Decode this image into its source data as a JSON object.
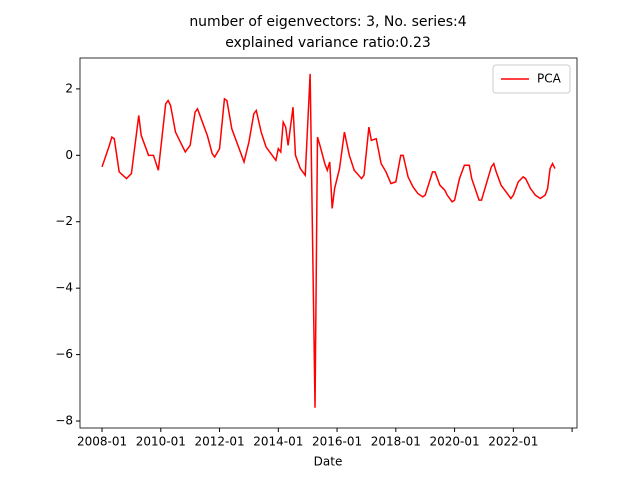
{
  "chart_data": {
    "type": "line",
    "title": "number of eigenvectors: 3, No. series:4",
    "subtitle": "explained variance ratio:0.23",
    "x_label": "Date",
    "legend": "upper right",
    "xlim": [
      "2007-04",
      "2024-03"
    ],
    "ylim": [
      -8.21,
      2.93
    ],
    "xticks": [
      "2008-01",
      "2010-01",
      "2012-01",
      "2014-01",
      "2016-01",
      "2018-01",
      "2020-01",
      "2022-01",
      {
        "value": "2024-01",
        "label": null
      }
    ],
    "yticks": [
      {
        "value": -8,
        "label": "−8"
      },
      {
        "value": -6,
        "label": "−6"
      },
      {
        "value": -4,
        "label": "−4"
      },
      {
        "value": -2,
        "label": "−2"
      },
      0,
      2
    ],
    "x": [
      "2008-01",
      "2008-04",
      "2008-05",
      "2008-06",
      "2008-08",
      "2008-11",
      "2009-01",
      "2009-04",
      "2009-05",
      "2009-08",
      "2009-10",
      "2009-12",
      "2010-03",
      "2010-04",
      "2010-05",
      "2010-07",
      "2010-09",
      "2010-11",
      "2011-01",
      "2011-03",
      "2011-04",
      "2011-08",
      "2011-10",
      "2011-11",
      "2012-01",
      "2012-03",
      "2012-04",
      "2012-06",
      "2012-09",
      "2012-11",
      "2013-01",
      "2013-03",
      "2013-04",
      "2013-06",
      "2013-08",
      "2013-10",
      "2013-12",
      "2014-01",
      "2014-02",
      "2014-03",
      "2014-04",
      "2014-05",
      "2014-07",
      "2014-08",
      "2014-10",
      "2014-12",
      "2015-02",
      "2015-04",
      "2015-05",
      "2015-06",
      "2015-08",
      "2015-09",
      "2015-10",
      "2015-11",
      "2015-12",
      "2016-02",
      "2016-03",
      "2016-04",
      "2016-06",
      "2016-08",
      "2016-11",
      "2016-12",
      "2017-02",
      "2017-03",
      "2017-05",
      "2017-07",
      "2017-09",
      "2017-11",
      "2018-01",
      "2018-03",
      "2018-04",
      "2018-06",
      "2018-08",
      "2018-10",
      "2018-12",
      "2019-01",
      "2019-04",
      "2019-05",
      "2019-07",
      "2019-09",
      "2019-10",
      "2019-12",
      "2020-01",
      "2020-03",
      "2020-05",
      "2020-07",
      "2020-08",
      "2020-11",
      "2020-12",
      "2021-01",
      "2021-04",
      "2021-05",
      "2021-06",
      "2021-08",
      "2021-10",
      "2021-12",
      "2022-01",
      "2022-03",
      "2022-05",
      "2022-06",
      "2022-08",
      "2022-10",
      "2022-12",
      "2023-02",
      "2023-03",
      "2023-04",
      "2023-05",
      "2023-06"
    ],
    "series": [
      {
        "name": "PCA",
        "color": "#ff0000",
        "values": [
          -0.35,
          0.3,
          0.55,
          0.5,
          -0.5,
          -0.7,
          -0.55,
          1.2,
          0.6,
          0,
          0,
          -0.45,
          1.55,
          1.65,
          1.5,
          0.7,
          0.4,
          0.1,
          0.3,
          1.3,
          1.4,
          0.6,
          0.05,
          -0.05,
          0.2,
          1.7,
          1.65,
          0.8,
          0.2,
          -0.2,
          0.4,
          1.25,
          1.35,
          0.7,
          0.25,
          0.05,
          -0.15,
          0.2,
          0.1,
          1.0,
          0.85,
          0.3,
          1.45,
          0.0,
          -0.4,
          -0.6,
          2.45,
          -7.6,
          0.55,
          0.3,
          -0.25,
          -0.45,
          -0.2,
          -1.6,
          -1.0,
          -0.4,
          0.15,
          0.7,
          0.0,
          -0.45,
          -0.7,
          -0.6,
          0.85,
          0.45,
          0.5,
          -0.25,
          -0.5,
          -0.85,
          -0.8,
          0.0,
          0.0,
          -0.65,
          -0.95,
          -1.15,
          -1.25,
          -1.2,
          -0.5,
          -0.5,
          -0.9,
          -1.05,
          -1.2,
          -1.4,
          -1.35,
          -0.7,
          -0.3,
          -0.3,
          -0.7,
          -1.35,
          -1.35,
          -1.1,
          -0.35,
          -0.25,
          -0.5,
          -0.9,
          -1.1,
          -1.3,
          -1.2,
          -0.8,
          -0.65,
          -0.7,
          -1.0,
          -1.2,
          -1.3,
          -1.2,
          -1.0,
          -0.4,
          -0.25,
          -0.4
        ]
      }
    ]
  }
}
